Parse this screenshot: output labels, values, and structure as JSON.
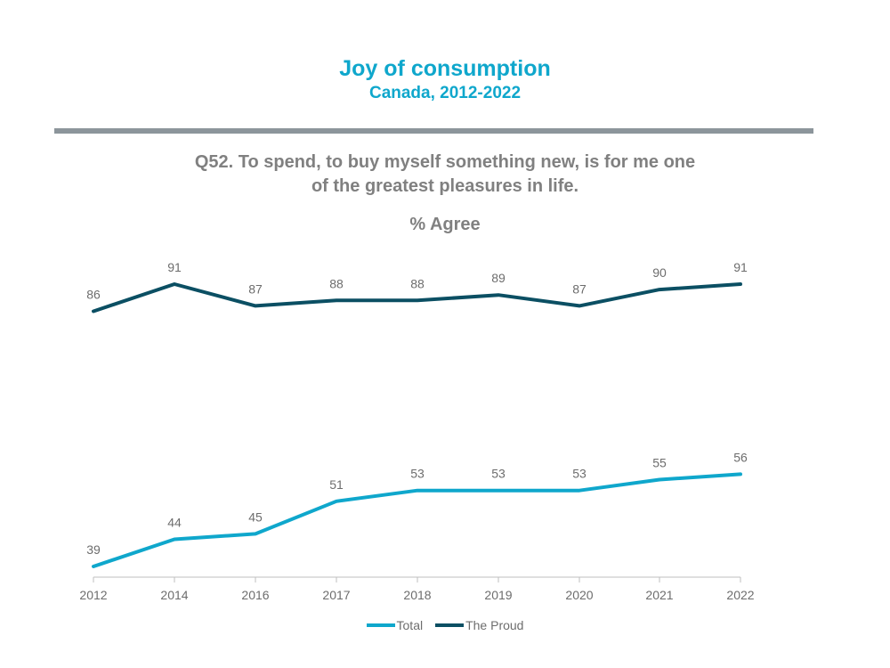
{
  "header": {
    "title": "Joy of consumption",
    "subtitle": "Canada, 2012-2022",
    "question_line1": "Q52. To spend, to buy myself something new, is for me one",
    "question_line2": "of the greatest pleasures in life.",
    "measure": "% Agree"
  },
  "chart_data": {
    "type": "line",
    "title": "Joy of consumption",
    "subtitle": "Canada, 2012-2022",
    "xlabel": "",
    "ylabel": "% Agree",
    "categories": [
      "2012",
      "2014",
      "2016",
      "2017",
      "2018",
      "2019",
      "2020",
      "2021",
      "2022"
    ],
    "ylim": [
      35,
      96
    ],
    "grid": false,
    "legend_position": "bottom",
    "series": [
      {
        "name": "Total",
        "color": "#0fa7cc",
        "values": [
          39,
          44,
          45,
          51,
          53,
          53,
          53,
          55,
          56
        ]
      },
      {
        "name": "The Proud",
        "color": "#0b4f63",
        "values": [
          86,
          91,
          87,
          88,
          88,
          89,
          87,
          90,
          91
        ]
      }
    ]
  }
}
